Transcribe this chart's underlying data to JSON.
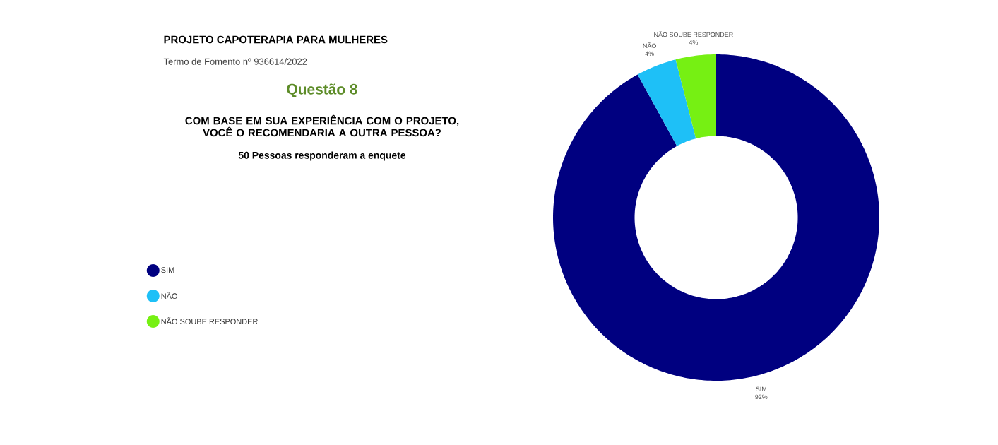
{
  "chart_data": {
    "type": "donut",
    "title": "PROJETO CAPOTERAPIA PARA MULHERES",
    "subtitle": "Termo de Fomento nº 936614/2022",
    "annotations": [
      "Questão 8",
      "COM BASE EM SUA EXPERIÊNCIA COM O PROJETO, VOCÊ O RECOMENDARIA A OUTRA PESSOA?",
      "50 Pessoas responderam a enquete"
    ],
    "categories": [
      "SIM",
      "NÃO",
      "NÃO SOUBE RESPONDER"
    ],
    "values": [
      92,
      4,
      4
    ],
    "colors": [
      "#000080",
      "#1ec0f7",
      "#76f013"
    ],
    "value_labels": [
      "92%",
      "4%",
      "4%"
    ],
    "legend": "left"
  }
}
